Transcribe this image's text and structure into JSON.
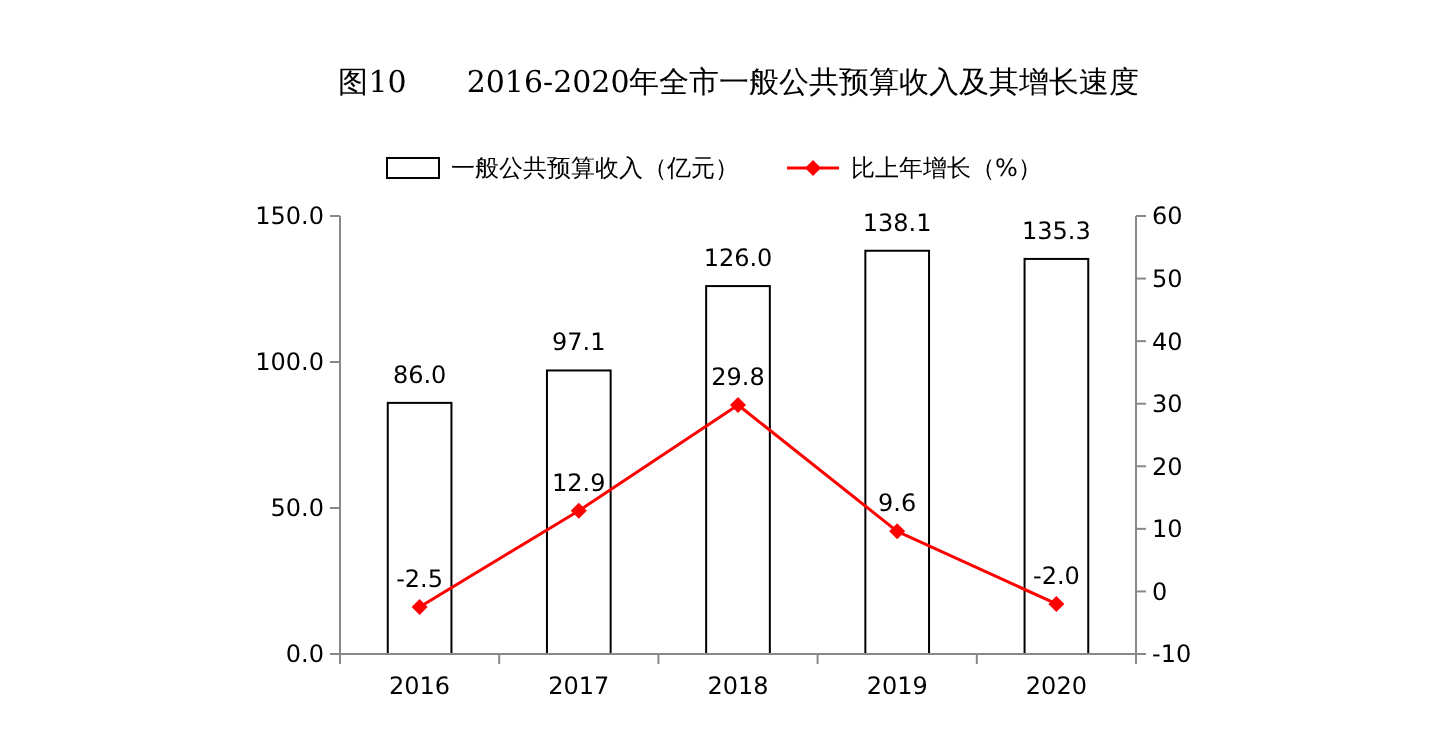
{
  "chart_data": {
    "type": "bar",
    "title": "图10　　2016-2020年全市一般公共预算收入及其增长速度",
    "categories": [
      "2016",
      "2017",
      "2018",
      "2019",
      "2020"
    ],
    "series": [
      {
        "name": "一般公共预算收入（亿元）",
        "color": "#ffffff",
        "values": [
          86.0,
          97.1,
          126.0,
          138.1,
          135.3
        ],
        "value_labels": [
          "86.0",
          "97.1",
          "126.0",
          "138.1",
          "135.3"
        ]
      },
      {
        "name": "比上年增长（%）",
        "type": "line",
        "axis": "y2",
        "color": "#ff0000",
        "marker": "diamond",
        "values": [
          -2.5,
          12.9,
          29.8,
          9.6,
          -2.0
        ],
        "value_labels": [
          "-2.5",
          "12.9",
          "29.8",
          "9.6",
          "-2.0"
        ]
      }
    ],
    "ylim": [
      0,
      150
    ],
    "yticks": [
      {
        "value": 0,
        "label": "0.0"
      },
      {
        "value": 50,
        "label": "50.0"
      },
      {
        "value": 100,
        "label": "100.0"
      },
      {
        "value": 150,
        "label": "150.0"
      }
    ],
    "y2lim": [
      -10,
      60
    ],
    "y2ticks": [
      -10,
      0,
      10,
      20,
      30,
      40,
      50,
      60
    ],
    "legend": "top",
    "grid": false
  }
}
